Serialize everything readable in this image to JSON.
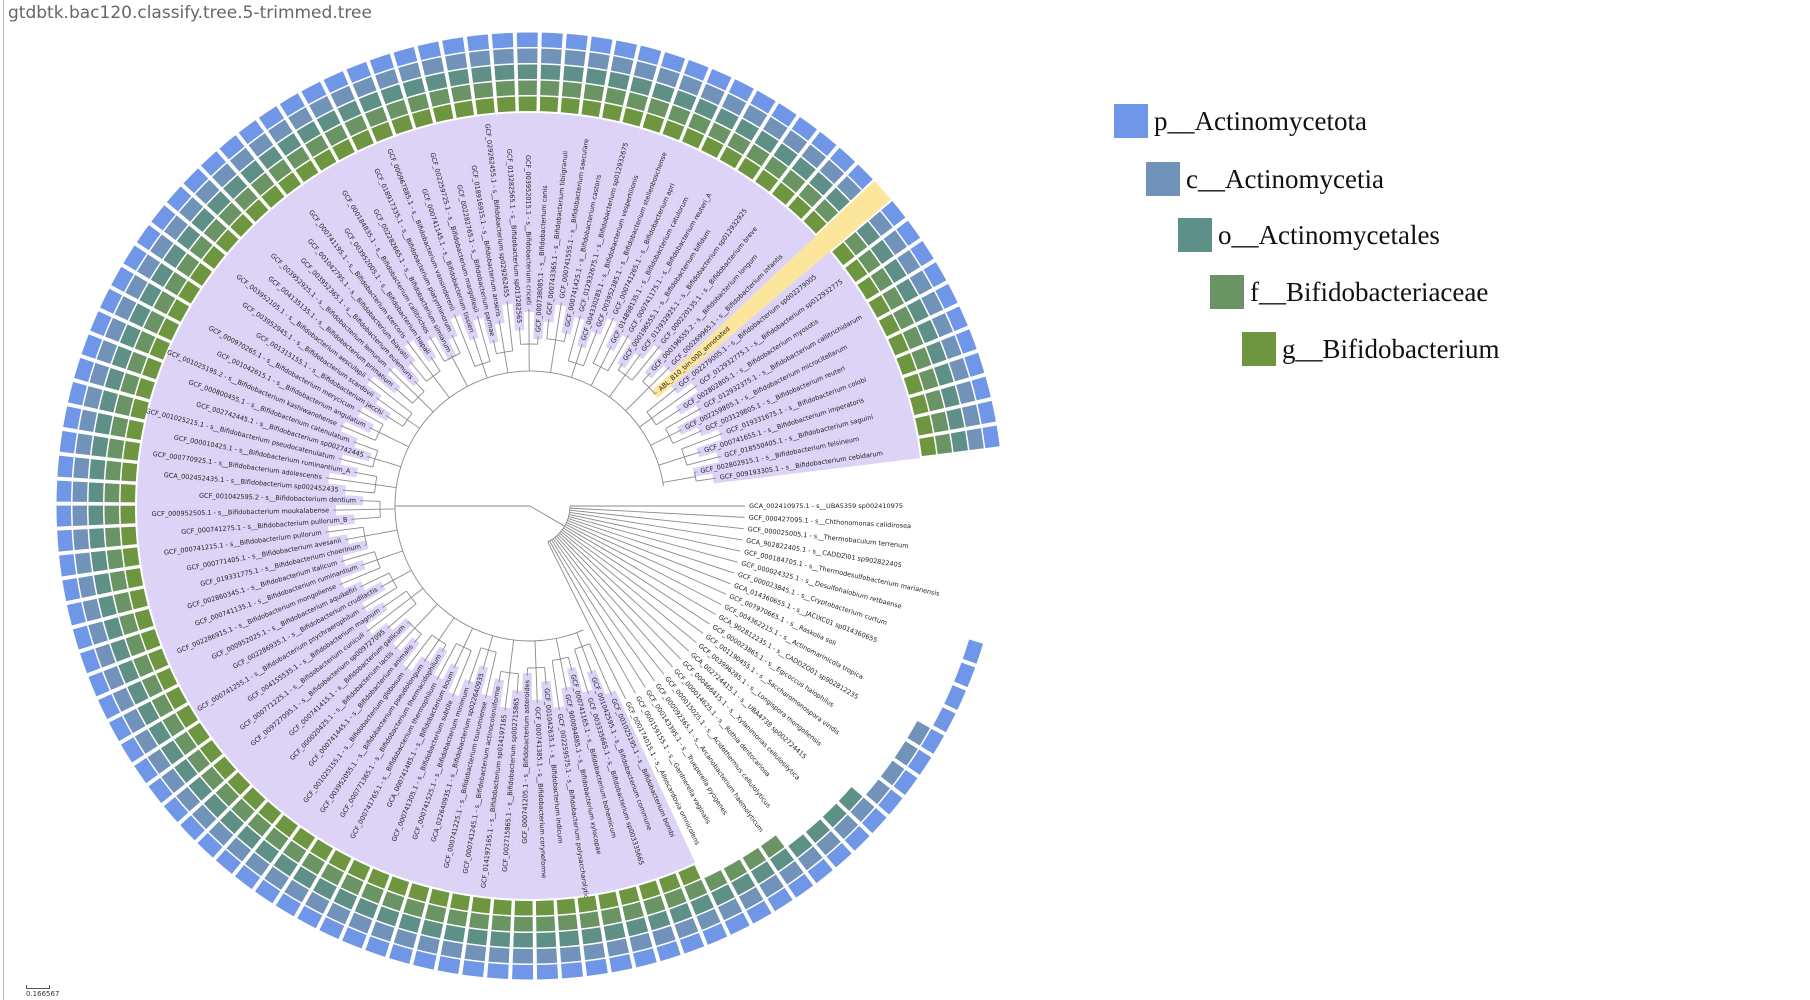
{
  "title": "gtdbtk.bac120.classify.tree.5-trimmed.tree",
  "scale_bar": "0.166567",
  "legend": [
    {
      "label": "p__Actinomycetota",
      "color": "#7096e8"
    },
    {
      "label": "c__Actinomycetia",
      "color": "#7193ba"
    },
    {
      "label": "o__Actinomycetales",
      "color": "#5f9088"
    },
    {
      "label": "f__Bifidobacteriaceae",
      "color": "#6a9464"
    },
    {
      "label": "g__Bifidobacterium",
      "color": "#6e9640"
    }
  ],
  "leaves": [
    {
      "label": "GCA_002410975.1 - s__UBA5359 sp002410975",
      "ranks": 0
    },
    {
      "label": "GCF_000427095.1 - s__Chthonomonas calidirosea",
      "ranks": 0
    },
    {
      "label": "GCF_000025005.1 - s__Thermobaculum terrenum",
      "ranks": 0
    },
    {
      "label": "GCA_902822405.1 - s__CADDZI01 sp902822405",
      "ranks": 0
    },
    {
      "label": "GCF_000184705.1 - s__Thermodesulfobacterium marianensis",
      "ranks": 0
    },
    {
      "label": "GCF_000024325.1 - s__Desulfohalobium retbaense",
      "ranks": 0
    },
    {
      "label": "GCF_000023845.1 - s__Cryptobacterium curtum",
      "ranks": 1
    },
    {
      "label": "GCA_014360655.1 - s__JACIXC01 sp014360655",
      "ranks": 1
    },
    {
      "label": "GCF_007970665.1 - s__Raskolia soli",
      "ranks": 1
    },
    {
      "label": "GCF_004362215.1 - s__Actinomarinicola tropica",
      "ranks": 1
    },
    {
      "label": "GCA_902812235.1 - s__CADDZO01 sp902812235",
      "ranks": 2
    },
    {
      "label": "GCF_000023865.1 - s__Egicoccus halophilus",
      "ranks": 2
    },
    {
      "label": "GCF_001190455.1 - s__Saccharomonospora viridis",
      "ranks": 2
    },
    {
      "label": "GCF_003996285.1 - s__Longispora mongoliensis",
      "ranks": 2
    },
    {
      "label": "GCA_002724415.1 - s__UBA4738 sp002724415",
      "ranks": 3
    },
    {
      "label": "GCF_000466415.1 - s__Xylanimonas cellulosilytica",
      "ranks": 3
    },
    {
      "label": "GCF_000014625.1 - s__Rothia dentocariosa",
      "ranks": 3
    },
    {
      "label": "GCF_000015025.1 - s__Acidothermus cellulolyticus",
      "ranks": 3
    },
    {
      "label": "GCF_000092365.1 - s__Arcanobacterium haemolyticum",
      "ranks": 4
    },
    {
      "label": "GCF_000143395.1 - s__Trueperella pyogenes",
      "ranks": 4
    },
    {
      "label": "GCF_000159155.1 - s__Gardnerella vaginalis",
      "ranks": 4
    },
    {
      "label": "GCF_000174015.1 - s__Alloscardovia omnicolens",
      "ranks": 4
    },
    {
      "label": "GCF_001025195.1 - s__Bifidobacterium bombi",
      "ranks": 5,
      "highlight": "#dcd3f7"
    },
    {
      "label": "GCF_001042595.1 - s__Bifidobacterium commune",
      "ranks": 5,
      "highlight": "#dcd3f7"
    },
    {
      "label": "GCF_003335665.1 - s__Bifidobacterium sp003335665",
      "ranks": 5,
      "highlight": "#dcd3f7"
    },
    {
      "label": "GCF_000741165.1 - s__Bifidobacterium bohemicum",
      "ranks": 5,
      "highlight": "#dcd3f7"
    },
    {
      "label": "GCF_900094885.1 - s__Bifidobacterium xylocopae",
      "ranks": 5,
      "highlight": "#dcd3f7"
    },
    {
      "label": "GCF_002259575.1 - s__Bifidobacterium polysaccharolyticum",
      "ranks": 5,
      "highlight": "#dcd3f7"
    },
    {
      "label": "GCF_001042635.1 - s__Bifidobacterium indicum",
      "ranks": 5,
      "highlight": "#dcd3f7"
    },
    {
      "label": "GCF_000741385.1 - s__Bifidobacterium coryneforme",
      "ranks": 5,
      "highlight": "#dcd3f7"
    },
    {
      "label": "GCF_000741205.1 - s__Bifidobacterium asteroides",
      "ranks": 5,
      "highlight": "#dcd3f7"
    },
    {
      "label": "GCF_002715865.1 - s__Bifidobacterium sp002715865",
      "ranks": 5,
      "highlight": "#dcd3f7"
    },
    {
      "label": "GCF_014197165.1 - s__Bifidobacterium sp014197165",
      "ranks": 5,
      "highlight": "#dcd3f7"
    },
    {
      "label": "GCF_000741245.1 - s__Bifidobacterium actinocoloniiforme",
      "ranks": 5,
      "highlight": "#dcd3f7"
    },
    {
      "label": "GCF_000741225.1 - s__Bifidobacterium tsurumiense",
      "ranks": 5,
      "highlight": "#dcd3f7"
    },
    {
      "label": "GCA_022640935.1 - s__Bifidobacterium sp022640935",
      "ranks": 5,
      "highlight": "#dcd3f7"
    },
    {
      "label": "GCF_000741525.1 - s__Bifidobacterium minimum",
      "ranks": 5,
      "highlight": "#dcd3f7"
    },
    {
      "label": "GCF_000741305.1 - s__Bifidobacterium subtile",
      "ranks": 5,
      "highlight": "#dcd3f7"
    },
    {
      "label": "GCA_000741485.1 - s__Bifidobacterium boum",
      "ranks": 5,
      "highlight": "#dcd3f7"
    },
    {
      "label": "GCF_000741765.1 - s__Bifidobacterium thermophilum",
      "ranks": 5,
      "highlight": "#dcd3f7"
    },
    {
      "label": "GCF_000771365.1 - s__Bifidobacterium thermacidophilum",
      "ranks": 5,
      "highlight": "#dcd3f7"
    },
    {
      "label": "GCF_003952055.1 - s__Bifidobacterium pseudolongum",
      "ranks": 5,
      "highlight": "#dcd3f7"
    },
    {
      "label": "GCF_001025155.1 - s__Bifidobacterium globosum",
      "ranks": 5,
      "highlight": "#dcd3f7"
    },
    {
      "label": "GCF_000741445.1 - s__Bifidobacterium animalis",
      "ranks": 5,
      "highlight": "#dcd3f7"
    },
    {
      "label": "GCF_000020425.1 - s__Bifidobacterium lactis",
      "ranks": 5,
      "highlight": "#dcd3f7"
    },
    {
      "label": "GCF_000741415.1 - s__Bifidobacterium gallicum",
      "ranks": 5,
      "highlight": "#dcd3f7"
    },
    {
      "label": "GCF_009727095.1 - s__Bifidobacterium sp009727095",
      "ranks": 5,
      "highlight": "#dcd3f7"
    },
    {
      "label": "GCF_000771225.1 - s__Bifidobacterium cuniculi",
      "ranks": 5,
      "highlight": "#dcd3f7"
    },
    {
      "label": "GCF_004155535.1 - s__Bifidobacterium magnum",
      "ranks": 5,
      "highlight": "#dcd3f7"
    },
    {
      "label": "GCF_000741255.1 - s__Bifidobacterium psychraerophilum",
      "ranks": 5,
      "highlight": "#dcd3f7"
    },
    {
      "label": "GCF_002286935.1 - s__Bifidobacterium crudilactis",
      "ranks": 5,
      "highlight": "#dcd3f7"
    },
    {
      "label": "GCF_000952025.1 - s__Bifidobacterium aquikefiri",
      "ranks": 5,
      "highlight": "#dcd3f7"
    },
    {
      "label": "GCF_002286915.1 - s__Bifidobacterium mongoliense",
      "ranks": 5,
      "highlight": "#dcd3f7"
    },
    {
      "label": "GCF_000741135.1 - s__Bifidobacterium ruminantium",
      "ranks": 5,
      "highlight": "#dcd3f7"
    },
    {
      "label": "GCF_002860345.1 - s__Bifidobacterium italicum",
      "ranks": 5,
      "highlight": "#dcd3f7"
    },
    {
      "label": "GCF_019331775.1 - s__Bifidobacterium choerinum",
      "ranks": 5,
      "highlight": "#dcd3f7"
    },
    {
      "label": "GCF_000771405.1 - s__Bifidobacterium avesanii",
      "ranks": 5,
      "highlight": "#dcd3f7"
    },
    {
      "label": "GCF_000741215.1 - s__Bifidobacterium pullorum",
      "ranks": 5,
      "highlight": "#dcd3f7"
    },
    {
      "label": "GCF_000741275.1 - s__Bifidobacterium pullorum_B",
      "ranks": 5,
      "highlight": "#dcd3f7"
    },
    {
      "label": "GCF_000952505.1 - s__Bifidobacterium moukalabense",
      "ranks": 5,
      "highlight": "#dcd3f7"
    },
    {
      "label": "GCF_001042595.2 - s__Bifidobacterium dentium",
      "ranks": 5,
      "highlight": "#dcd3f7"
    },
    {
      "label": "GCA_002452435.1 - s__Bifidobacterium sp002452435",
      "ranks": 5,
      "highlight": "#dcd3f7"
    },
    {
      "label": "GCF_000770925.1 - s__Bifidobacterium adolescentis",
      "ranks": 5,
      "highlight": "#dcd3f7"
    },
    {
      "label": "GCF_000010425.1 - s__Bifidobacterium ruminantium_A",
      "ranks": 5,
      "highlight": "#dcd3f7"
    },
    {
      "label": "GCF_001025215.1 - s__Bifidobacterium pseudocatenulatum",
      "ranks": 5,
      "highlight": "#dcd3f7"
    },
    {
      "label": "GCF_002742445.1 - s__Bifidobacterium sp002742445",
      "ranks": 5,
      "highlight": "#dcd3f7"
    },
    {
      "label": "GCF_000800455.1 - s__Bifidobacterium catenulatum",
      "ranks": 5,
      "highlight": "#dcd3f7"
    },
    {
      "label": "GCF_001025195.2 - s__Bifidobacterium kashiwanohense",
      "ranks": 5,
      "highlight": "#dcd3f7"
    },
    {
      "label": "GCF_001042615.1 - s__Bifidobacterium angulatum",
      "ranks": 5,
      "highlight": "#dcd3f7"
    },
    {
      "label": "GCF_000970265.1 - s__Bifidobacterium merycicum",
      "ranks": 5,
      "highlight": "#dcd3f7"
    },
    {
      "label": "GCF_001315155.1 - s__Bifidobacterium jacchi",
      "ranks": 5,
      "highlight": "#dcd3f7"
    },
    {
      "label": "GCF_003952945.1 - s__Bifidobacterium scardovii",
      "ranks": 5,
      "highlight": "#dcd3f7"
    },
    {
      "label": "GCF_003952105.1 - s__Bifidobacterium aesculapii",
      "ranks": 5,
      "highlight": "#dcd3f7"
    },
    {
      "label": "GCF_004135135.1 - s__Bifidobacterium primatium",
      "ranks": 5,
      "highlight": "#dcd3f7"
    },
    {
      "label": "GCF_003952925.1 - s__Bifidobacterium lemurum",
      "ranks": 5,
      "highlight": "#dcd3f7"
    },
    {
      "label": "GCF_003952365.1 - s__Bifidobacterium eulemuris",
      "ranks": 5,
      "highlight": "#dcd3f7"
    },
    {
      "label": "GCF_001042795.1 - s__Bifidobacterium biavatii",
      "ranks": 5,
      "highlight": "#dcd3f7"
    },
    {
      "label": "GCF_000741195.1 - s__Bifidobacterium stercoris",
      "ranks": 5,
      "highlight": "#dcd3f7"
    },
    {
      "label": "GCF_003952005.1 - s__Bifidobacterium hapali",
      "ranks": 5,
      "highlight": "#dcd3f7"
    },
    {
      "label": "GCF_000184835.1 - s__Bifidobacterium callitrichos",
      "ranks": 5,
      "highlight": "#dcd3f7"
    },
    {
      "label": "GCF_002282665.1 - s__Bifidobacterium simiarum",
      "ranks": 5,
      "highlight": "#dcd3f7"
    },
    {
      "label": "GCF_018917335.1 - s__Bifidobacterium platyrrhinorum",
      "ranks": 5,
      "highlight": "#dcd3f7"
    },
    {
      "label": "GCF_000967885.1 - s__Bifidobacterium vansinderenii",
      "ranks": 5,
      "highlight": "#dcd3f7"
    },
    {
      "label": "GCF_000741145.1 - s__Bifidobacterium tissieri",
      "ranks": 5,
      "highlight": "#dcd3f7"
    },
    {
      "label": "GCF_002259725.1 - s__Bifidobacterium margollesii",
      "ranks": 5,
      "highlight": "#dcd3f7"
    },
    {
      "label": "GCF_002282765.1 - s__Bifidobacterium parmae",
      "ranks": 5,
      "highlight": "#dcd3f7"
    },
    {
      "label": "GCF_018916915.1 - s__Bifidobacterium anseris",
      "ranks": 5,
      "highlight": "#dcd3f7"
    },
    {
      "label": "GCF_029262455.1 - s__Bifidobacterium sp029262455",
      "ranks": 5,
      "highlight": "#dcd3f7"
    },
    {
      "label": "GCF_013282565.1 - s__Bifidobacterium sp013282565",
      "ranks": 5,
      "highlight": "#dcd3f7"
    },
    {
      "label": "GCF_003952015.1 - s__Bifidobacterium criceti",
      "ranks": 5,
      "highlight": "#dcd3f7"
    },
    {
      "label": "GCF_000738085.1 - s__Bifidobacterium canis",
      "ranks": 5,
      "highlight": "#dcd3f7"
    },
    {
      "label": "GCF_000743365.1 - s__Bifidobacterium tibiigranuli",
      "ranks": 5,
      "highlight": "#dcd3f7"
    },
    {
      "label": "GCF_000741555.1 - s__Bifidobacterium saeculare",
      "ranks": 5,
      "highlight": "#dcd3f7"
    },
    {
      "label": "GCF_000741425.1 - s__Bifidobacterium castoris",
      "ranks": 5,
      "highlight": "#dcd3f7"
    },
    {
      "label": "GCF_012932675.1 - s__Bifidobacterium sp012932675",
      "ranks": 5,
      "highlight": "#dcd3f7"
    },
    {
      "label": "GCF_004330285.1 - s__Bifidobacterium vespertilionis",
      "ranks": 5,
      "highlight": "#dcd3f7"
    },
    {
      "label": "GCF_003952385.1 - s__Bifidobacterium stellenboschense",
      "ranks": 5,
      "highlight": "#dcd3f7"
    },
    {
      "label": "GCF_000741265.1 - s__Bifidobacterium apri",
      "ranks": 5,
      "highlight": "#dcd3f7"
    },
    {
      "label": "GCF_014898135.1 - s__Bifidobacterium catulorum",
      "ranks": 5,
      "highlight": "#dcd3f7"
    },
    {
      "label": "GCF_000741175.1 - s__Bifidobacterium reuteri_A",
      "ranks": 5,
      "highlight": "#dcd3f7"
    },
    {
      "label": "GCF_000196555.1 - s__Bifidobacterium bifidum",
      "ranks": 5,
      "highlight": "#dcd3f7"
    },
    {
      "label": "GCF_012932925.1 - s__Bifidobacterium sp012932925",
      "ranks": 5,
      "highlight": "#dcd3f7"
    },
    {
      "label": "GCF_000220135.1 - s__Bifidobacterium breve",
      "ranks": 5,
      "highlight": "#dcd3f7"
    },
    {
      "label": "GCF_000196555.2 - s__Bifidobacterium longum",
      "ranks": 5,
      "highlight": "#dcd3f7"
    },
    {
      "label": "GCF_000269965.1 - s__Bifidobacterium infantis",
      "ranks": 5,
      "highlight": "#dcd3f7"
    },
    {
      "label": "ABL_B10_bin.000_annotated",
      "ranks": 0,
      "highlight": "#fbe69b"
    },
    {
      "label": "GCF_002279005.1 - s__Bifidobacterium sp002279005",
      "ranks": 5,
      "highlight": "#dcd3f7"
    },
    {
      "label": "GCF_012932775.1 - s__Bifidobacterium sp012932775",
      "ranks": 5,
      "highlight": "#dcd3f7"
    },
    {
      "label": "GCF_002802805.1 - s__Bifidobacterium myosotis",
      "ranks": 5,
      "highlight": "#dcd3f7"
    },
    {
      "label": "GCF_012932375.1 - s__Bifidobacterium callitrichidarum",
      "ranks": 5,
      "highlight": "#dcd3f7"
    },
    {
      "label": "GCF_002259805.1 - s__Bifidobacterium microcitellarum",
      "ranks": 5,
      "highlight": "#dcd3f7"
    },
    {
      "label": "GCF_003129805.1 - s__Bifidobacterium reuteri",
      "ranks": 5,
      "highlight": "#dcd3f7"
    },
    {
      "label": "GCF_019331675.1 - s__Bifidobacterium colobi",
      "ranks": 5,
      "highlight": "#dcd3f7"
    },
    {
      "label": "GCF_000741655.1 - s__Bifidobacterium imperatoris",
      "ranks": 5,
      "highlight": "#dcd3f7"
    },
    {
      "label": "GCF_018550405.1 - s__Bifidobacterium saguini",
      "ranks": 5,
      "highlight": "#dcd3f7"
    },
    {
      "label": "GCF_002802915.1 - s__Bifidobacterium felsineum",
      "ranks": 5,
      "highlight": "#dcd3f7"
    },
    {
      "label": "GCF_009193305.1 - s__Bifidobacterium cebidarum",
      "ranks": 5,
      "highlight": "#dcd3f7"
    }
  ]
}
